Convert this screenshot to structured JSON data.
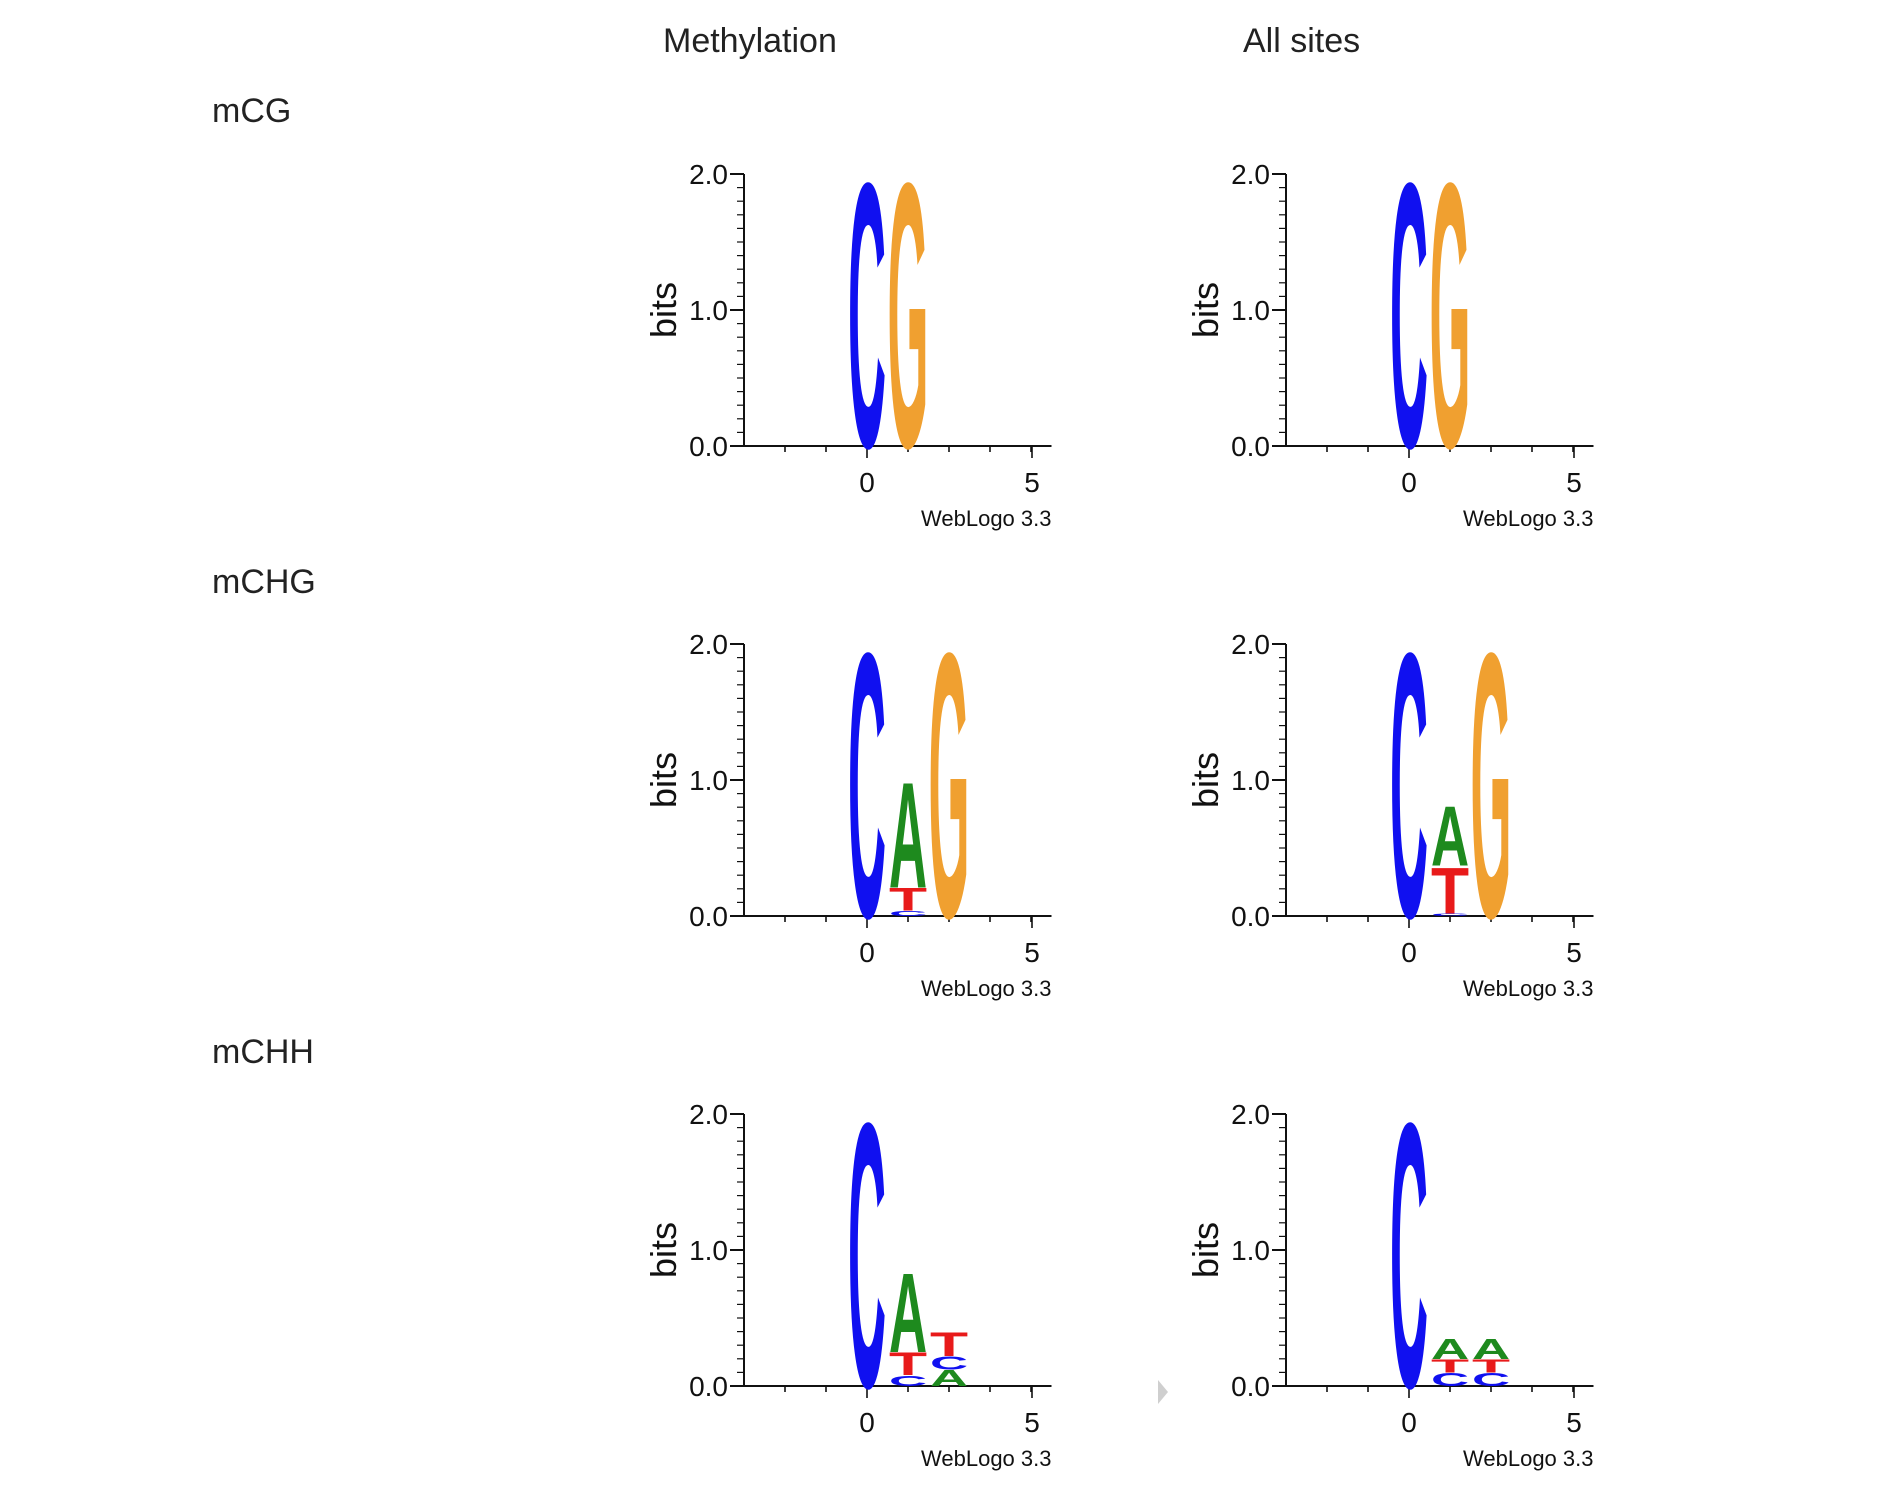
{
  "headers": [
    "Methylation",
    "All sites"
  ],
  "rows": [
    "mCG",
    "mCHG",
    "mCHH"
  ],
  "colors": {
    "A": "#1e8a1e",
    "C": "#1010f0",
    "G": "#f0a030",
    "T": "#e81a1a"
  },
  "chart_data": [
    {
      "type": "sequence-logo",
      "row": "mCG",
      "column": "Methylation",
      "ylabel": "bits",
      "ylim": [
        0,
        2
      ],
      "yticks": [
        "0.0",
        "1.0",
        "2.0"
      ],
      "xticks": [
        "0",
        "5"
      ],
      "credit": "WebLogo 3.3",
      "positions": [
        {
          "x": 0,
          "stack": [
            {
              "letter": "C",
              "bits": 2.0
            }
          ]
        },
        {
          "x": 1,
          "stack": [
            {
              "letter": "G",
              "bits": 2.0
            }
          ]
        }
      ]
    },
    {
      "type": "sequence-logo",
      "row": "mCG",
      "column": "All sites",
      "ylabel": "bits",
      "ylim": [
        0,
        2
      ],
      "yticks": [
        "0.0",
        "1.0",
        "2.0"
      ],
      "xticks": [
        "0",
        "5"
      ],
      "credit": "WebLogo 3.3",
      "positions": [
        {
          "x": 0,
          "stack": [
            {
              "letter": "C",
              "bits": 2.0
            }
          ]
        },
        {
          "x": 1,
          "stack": [
            {
              "letter": "G",
              "bits": 2.0
            }
          ]
        }
      ]
    },
    {
      "type": "sequence-logo",
      "row": "mCHG",
      "column": "Methylation",
      "ylabel": "bits",
      "ylim": [
        0,
        2
      ],
      "yticks": [
        "0.0",
        "1.0",
        "2.0"
      ],
      "xticks": [
        "0",
        "5"
      ],
      "credit": "WebLogo 3.3",
      "positions": [
        {
          "x": 0,
          "stack": [
            {
              "letter": "C",
              "bits": 2.0
            }
          ]
        },
        {
          "x": 1,
          "stack": [
            {
              "letter": "C",
              "bits": 0.04
            },
            {
              "letter": "T",
              "bits": 0.17
            },
            {
              "letter": "A",
              "bits": 0.8
            }
          ]
        },
        {
          "x": 2,
          "stack": [
            {
              "letter": "G",
              "bits": 2.0
            }
          ]
        }
      ]
    },
    {
      "type": "sequence-logo",
      "row": "mCHG",
      "column": "All sites",
      "ylabel": "bits",
      "ylim": [
        0,
        2
      ],
      "yticks": [
        "0.0",
        "1.0",
        "2.0"
      ],
      "xticks": [
        "0",
        "5"
      ],
      "credit": "WebLogo 3.3",
      "positions": [
        {
          "x": 0,
          "stack": [
            {
              "letter": "C",
              "bits": 2.0
            }
          ]
        },
        {
          "x": 1,
          "stack": [
            {
              "letter": "C",
              "bits": 0.02
            },
            {
              "letter": "T",
              "bits": 0.35
            },
            {
              "letter": "A",
              "bits": 0.45
            }
          ]
        },
        {
          "x": 2,
          "stack": [
            {
              "letter": "G",
              "bits": 2.0
            }
          ]
        }
      ]
    },
    {
      "type": "sequence-logo",
      "row": "mCHH",
      "column": "Methylation",
      "ylabel": "bits",
      "ylim": [
        0,
        2
      ],
      "yticks": [
        "0.0",
        "1.0",
        "2.0"
      ],
      "xticks": [
        "0",
        "5"
      ],
      "credit": "WebLogo 3.3",
      "positions": [
        {
          "x": 0,
          "stack": [
            {
              "letter": "C",
              "bits": 2.0
            }
          ]
        },
        {
          "x": 1,
          "stack": [
            {
              "letter": "C",
              "bits": 0.08
            },
            {
              "letter": "T",
              "bits": 0.17
            },
            {
              "letter": "A",
              "bits": 0.6
            }
          ]
        },
        {
          "x": 2,
          "stack": [
            {
              "letter": "A",
              "bits": 0.12
            },
            {
              "letter": "C",
              "bits": 0.1
            },
            {
              "letter": "T",
              "bits": 0.18
            }
          ]
        }
      ]
    },
    {
      "type": "sequence-logo",
      "row": "mCHH",
      "column": "All sites",
      "ylabel": "bits",
      "ylim": [
        0,
        2
      ],
      "yticks": [
        "0.0",
        "1.0",
        "2.0"
      ],
      "xticks": [
        "0",
        "5"
      ],
      "credit": "WebLogo 3.3",
      "positions": [
        {
          "x": 0,
          "stack": [
            {
              "letter": "C",
              "bits": 2.0
            }
          ]
        },
        {
          "x": 1,
          "stack": [
            {
              "letter": "C",
              "bits": 0.1
            },
            {
              "letter": "T",
              "bits": 0.1
            },
            {
              "letter": "A",
              "bits": 0.15
            }
          ]
        },
        {
          "x": 2,
          "stack": [
            {
              "letter": "C",
              "bits": 0.1
            },
            {
              "letter": "T",
              "bits": 0.1
            },
            {
              "letter": "A",
              "bits": 0.15
            }
          ]
        }
      ]
    }
  ]
}
